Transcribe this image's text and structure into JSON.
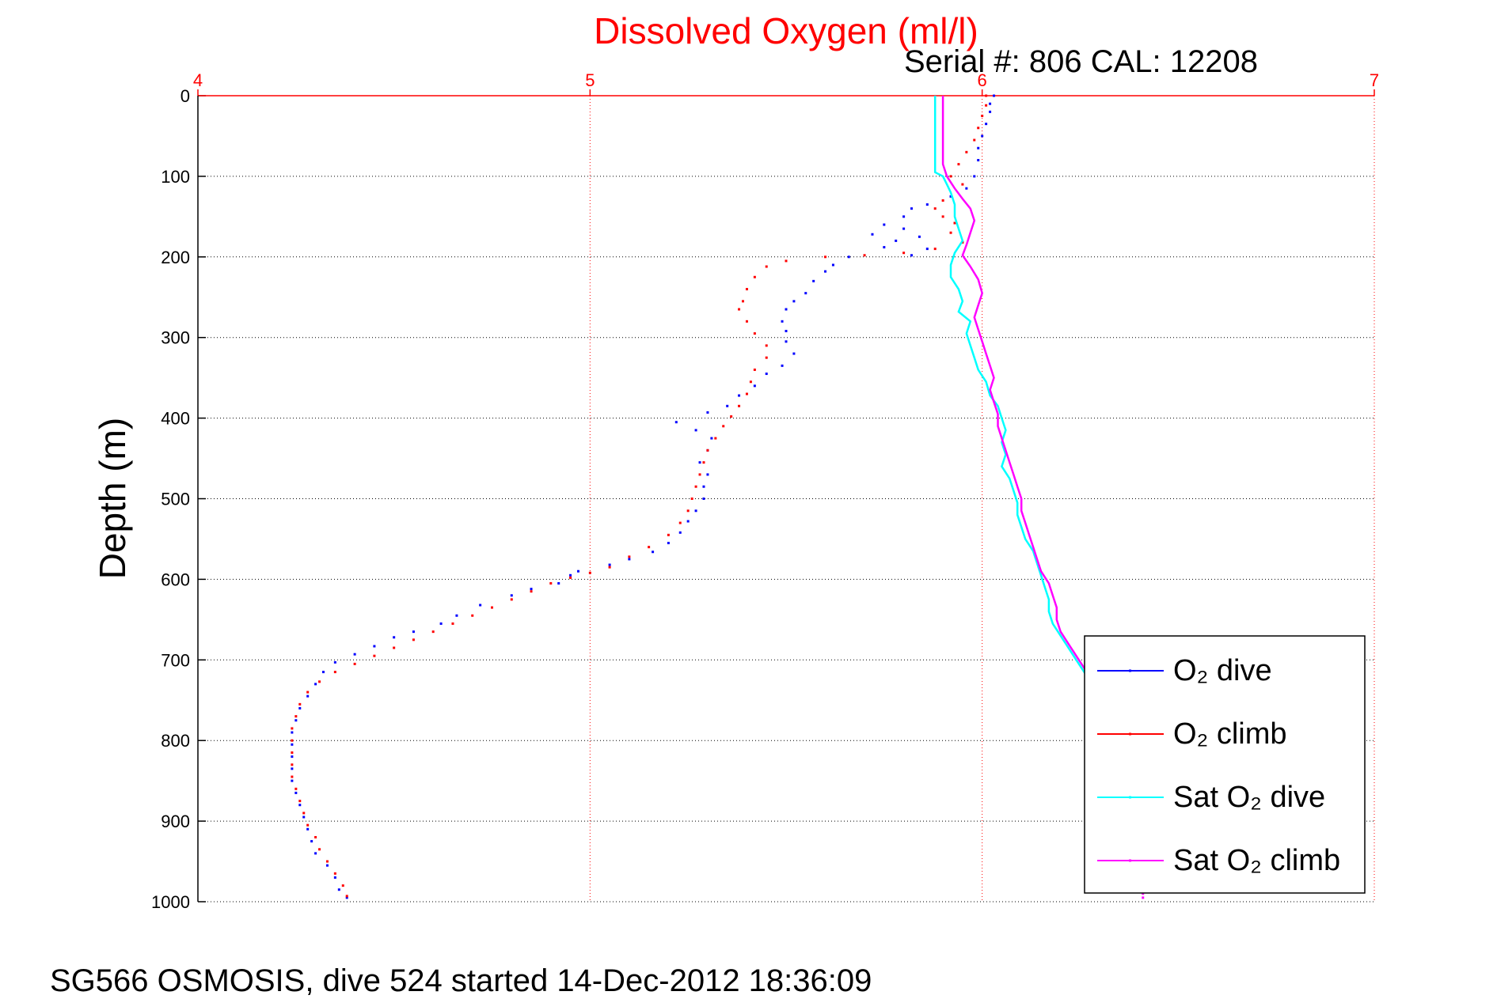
{
  "chart_data": {
    "type": "scatter",
    "title": "Dissolved Oxygen (ml/l)",
    "subtitle": "Serial #: 806  CAL: 12208",
    "xlabel": "",
    "ylabel": "Depth (m)",
    "xlim": [
      4,
      7
    ],
    "ylim": [
      0,
      1000
    ],
    "y_reversed": true,
    "x_ticks": [
      "4",
      "5",
      "6",
      "7"
    ],
    "y_ticks": [
      "0",
      "100",
      "200",
      "300",
      "400",
      "500",
      "600",
      "700",
      "800",
      "900",
      "1000"
    ],
    "grid": true,
    "legend_position": "bottom-right",
    "colors": {
      "title": "#ff0000",
      "x_axis": "#ff0000",
      "O2_dive": "#0000ff",
      "O2_climb": "#ff0000",
      "Sat_O2_dive": "#00ffff",
      "Sat_O2_climb": "#ff00ff"
    },
    "series": [
      {
        "name": "O2 dive",
        "style": "dots",
        "points": [
          [
            6.03,
            0
          ],
          [
            6.02,
            10
          ],
          [
            6.02,
            20
          ],
          [
            6.01,
            35
          ],
          [
            6.0,
            50
          ],
          [
            5.99,
            65
          ],
          [
            5.99,
            80
          ],
          [
            5.98,
            100
          ],
          [
            5.96,
            115
          ],
          [
            5.92,
            125
          ],
          [
            5.86,
            135
          ],
          [
            5.82,
            140
          ],
          [
            5.8,
            150
          ],
          [
            5.75,
            160
          ],
          [
            5.8,
            165
          ],
          [
            5.72,
            172
          ],
          [
            5.84,
            175
          ],
          [
            5.78,
            180
          ],
          [
            5.75,
            188
          ],
          [
            5.86,
            190
          ],
          [
            5.82,
            198
          ],
          [
            5.66,
            200
          ],
          [
            5.62,
            210
          ],
          [
            5.6,
            218
          ],
          [
            5.57,
            230
          ],
          [
            5.55,
            245
          ],
          [
            5.52,
            255
          ],
          [
            5.5,
            265
          ],
          [
            5.49,
            280
          ],
          [
            5.5,
            292
          ],
          [
            5.5,
            305
          ],
          [
            5.52,
            320
          ],
          [
            5.49,
            335
          ],
          [
            5.45,
            345
          ],
          [
            5.42,
            360
          ],
          [
            5.38,
            372
          ],
          [
            5.35,
            385
          ],
          [
            5.3,
            393
          ],
          [
            5.22,
            405
          ],
          [
            5.27,
            415
          ],
          [
            5.31,
            425
          ],
          [
            5.3,
            440
          ],
          [
            5.28,
            455
          ],
          [
            5.3,
            470
          ],
          [
            5.29,
            485
          ],
          [
            5.29,
            500
          ],
          [
            5.27,
            515
          ],
          [
            5.25,
            528
          ],
          [
            5.23,
            542
          ],
          [
            5.2,
            555
          ],
          [
            5.16,
            566
          ],
          [
            5.1,
            575
          ],
          [
            5.05,
            582
          ],
          [
            4.97,
            590
          ],
          [
            4.95,
            595
          ],
          [
            4.92,
            605
          ],
          [
            4.85,
            612
          ],
          [
            4.8,
            620
          ],
          [
            4.72,
            632
          ],
          [
            4.66,
            645
          ],
          [
            4.62,
            655
          ],
          [
            4.55,
            665
          ],
          [
            4.5,
            672
          ],
          [
            4.45,
            683
          ],
          [
            4.4,
            693
          ],
          [
            4.35,
            703
          ],
          [
            4.32,
            715
          ],
          [
            4.3,
            730
          ],
          [
            4.28,
            745
          ],
          [
            4.26,
            760
          ],
          [
            4.25,
            775
          ],
          [
            4.24,
            790
          ],
          [
            4.24,
            805
          ],
          [
            4.24,
            820
          ],
          [
            4.24,
            835
          ],
          [
            4.24,
            850
          ],
          [
            4.25,
            865
          ],
          [
            4.26,
            880
          ],
          [
            4.27,
            895
          ],
          [
            4.28,
            910
          ],
          [
            4.29,
            925
          ],
          [
            4.3,
            940
          ],
          [
            4.33,
            955
          ],
          [
            4.35,
            970
          ],
          [
            4.36,
            985
          ],
          [
            4.38,
            995
          ]
        ]
      },
      {
        "name": "O2 climb",
        "style": "dots",
        "points": [
          [
            6.01,
            0
          ],
          [
            6.01,
            12
          ],
          [
            6.0,
            25
          ],
          [
            5.99,
            40
          ],
          [
            5.98,
            55
          ],
          [
            5.96,
            70
          ],
          [
            5.94,
            85
          ],
          [
            5.92,
            100
          ],
          [
            5.95,
            110
          ],
          [
            5.9,
            130
          ],
          [
            5.88,
            140
          ],
          [
            5.9,
            150
          ],
          [
            5.93,
            158
          ],
          [
            5.92,
            170
          ],
          [
            5.95,
            182
          ],
          [
            5.88,
            190
          ],
          [
            5.8,
            195
          ],
          [
            5.7,
            198
          ],
          [
            5.6,
            200
          ],
          [
            5.5,
            205
          ],
          [
            5.45,
            212
          ],
          [
            5.42,
            225
          ],
          [
            5.4,
            240
          ],
          [
            5.39,
            255
          ],
          [
            5.38,
            265
          ],
          [
            5.4,
            280
          ],
          [
            5.42,
            295
          ],
          [
            5.45,
            310
          ],
          [
            5.45,
            325
          ],
          [
            5.42,
            340
          ],
          [
            5.41,
            355
          ],
          [
            5.4,
            370
          ],
          [
            5.38,
            385
          ],
          [
            5.36,
            398
          ],
          [
            5.34,
            410
          ],
          [
            5.32,
            425
          ],
          [
            5.3,
            440
          ],
          [
            5.29,
            455
          ],
          [
            5.28,
            470
          ],
          [
            5.27,
            485
          ],
          [
            5.26,
            500
          ],
          [
            5.25,
            515
          ],
          [
            5.23,
            530
          ],
          [
            5.2,
            545
          ],
          [
            5.15,
            560
          ],
          [
            5.1,
            572
          ],
          [
            5.05,
            585
          ],
          [
            5.0,
            592
          ],
          [
            4.95,
            598
          ],
          [
            4.9,
            605
          ],
          [
            4.85,
            615
          ],
          [
            4.8,
            625
          ],
          [
            4.75,
            635
          ],
          [
            4.7,
            645
          ],
          [
            4.65,
            655
          ],
          [
            4.6,
            665
          ],
          [
            4.55,
            675
          ],
          [
            4.5,
            685
          ],
          [
            4.45,
            695
          ],
          [
            4.4,
            705
          ],
          [
            4.35,
            715
          ],
          [
            4.31,
            727
          ],
          [
            4.28,
            740
          ],
          [
            4.26,
            755
          ],
          [
            4.25,
            770
          ],
          [
            4.24,
            785
          ],
          [
            4.24,
            800
          ],
          [
            4.24,
            815
          ],
          [
            4.24,
            830
          ],
          [
            4.24,
            845
          ],
          [
            4.25,
            860
          ],
          [
            4.26,
            875
          ],
          [
            4.27,
            890
          ],
          [
            4.28,
            905
          ],
          [
            4.3,
            920
          ],
          [
            4.31,
            935
          ],
          [
            4.33,
            950
          ],
          [
            4.35,
            965
          ],
          [
            4.37,
            980
          ],
          [
            4.38,
            993
          ]
        ]
      },
      {
        "name": "Sat O2 dive",
        "style": "line",
        "points": [
          [
            5.88,
            0
          ],
          [
            5.88,
            30
          ],
          [
            5.88,
            60
          ],
          [
            5.88,
            80
          ],
          [
            5.88,
            95
          ],
          [
            5.9,
            100
          ],
          [
            5.91,
            110
          ],
          [
            5.92,
            120
          ],
          [
            5.93,
            135
          ],
          [
            5.93,
            150
          ],
          [
            5.94,
            165
          ],
          [
            5.95,
            180
          ],
          [
            5.93,
            195
          ],
          [
            5.92,
            210
          ],
          [
            5.92,
            225
          ],
          [
            5.94,
            240
          ],
          [
            5.95,
            255
          ],
          [
            5.94,
            268
          ],
          [
            5.97,
            280
          ],
          [
            5.96,
            295
          ],
          [
            5.97,
            310
          ],
          [
            5.98,
            325
          ],
          [
            5.99,
            340
          ],
          [
            6.01,
            355
          ],
          [
            6.02,
            372
          ],
          [
            6.04,
            385
          ],
          [
            6.05,
            400
          ],
          [
            6.06,
            415
          ],
          [
            6.05,
            430
          ],
          [
            6.06,
            445
          ],
          [
            6.05,
            460
          ],
          [
            6.07,
            475
          ],
          [
            6.08,
            490
          ],
          [
            6.09,
            505
          ],
          [
            6.09,
            520
          ],
          [
            6.1,
            535
          ],
          [
            6.11,
            550
          ],
          [
            6.13,
            565
          ],
          [
            6.14,
            580
          ],
          [
            6.15,
            595
          ],
          [
            6.16,
            610
          ],
          [
            6.17,
            625
          ],
          [
            6.17,
            640
          ],
          [
            6.18,
            655
          ],
          [
            6.2,
            670
          ],
          [
            6.22,
            685
          ],
          [
            6.24,
            700
          ],
          [
            6.26,
            715
          ],
          [
            6.28,
            730
          ]
        ]
      },
      {
        "name": "Sat O2 climb",
        "style": "line",
        "points": [
          [
            5.9,
            0
          ],
          [
            5.9,
            30
          ],
          [
            5.9,
            60
          ],
          [
            5.9,
            85
          ],
          [
            5.91,
            100
          ],
          [
            5.93,
            115
          ],
          [
            5.95,
            128
          ],
          [
            5.97,
            140
          ],
          [
            5.98,
            155
          ],
          [
            5.97,
            170
          ],
          [
            5.96,
            185
          ],
          [
            5.95,
            198
          ],
          [
            5.97,
            212
          ],
          [
            5.99,
            228
          ],
          [
            6.0,
            245
          ],
          [
            5.99,
            260
          ],
          [
            5.98,
            275
          ],
          [
            5.99,
            290
          ],
          [
            6.0,
            305
          ],
          [
            6.01,
            320
          ],
          [
            6.02,
            335
          ],
          [
            6.03,
            350
          ],
          [
            6.02,
            365
          ],
          [
            6.03,
            380
          ],
          [
            6.04,
            395
          ],
          [
            6.04,
            410
          ],
          [
            6.05,
            425
          ],
          [
            6.06,
            440
          ],
          [
            6.07,
            455
          ],
          [
            6.08,
            470
          ],
          [
            6.09,
            485
          ],
          [
            6.1,
            500
          ],
          [
            6.1,
            515
          ],
          [
            6.11,
            530
          ],
          [
            6.12,
            545
          ],
          [
            6.13,
            560
          ],
          [
            6.14,
            575
          ],
          [
            6.15,
            590
          ],
          [
            6.17,
            605
          ],
          [
            6.18,
            620
          ],
          [
            6.19,
            635
          ],
          [
            6.19,
            650
          ],
          [
            6.2,
            665
          ],
          [
            6.22,
            680
          ],
          [
            6.24,
            695
          ],
          [
            6.26,
            710
          ],
          [
            6.28,
            725
          ]
        ]
      },
      {
        "name": "Sat O2 climb bottom",
        "style": "dots",
        "in_legend": false,
        "color_key": "Sat_O2_climb",
        "points": [
          [
            6.41,
            985
          ],
          [
            6.41,
            990
          ],
          [
            6.41,
            995
          ]
        ]
      }
    ],
    "legend": [
      {
        "label": "O₂ dive",
        "color_key": "O2_dive"
      },
      {
        "label": "O₂ climb",
        "color_key": "O2_climb"
      },
      {
        "label": "Sat O₂ dive",
        "color_key": "Sat_O2_dive"
      },
      {
        "label": "Sat O₂ climb",
        "color_key": "Sat_O2_climb"
      }
    ]
  },
  "footer": "SG566 OSMOSIS, dive 524 started 14-Dec-2012 18:36:09"
}
